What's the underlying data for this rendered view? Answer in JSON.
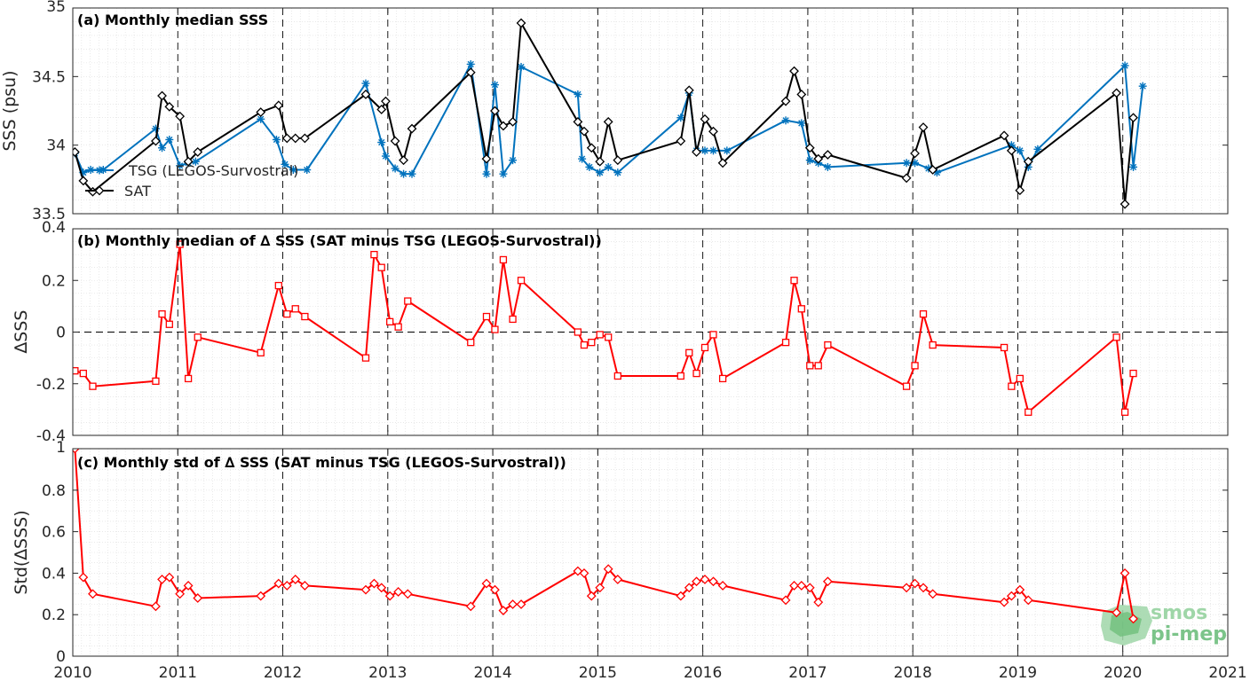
{
  "chart_data": [
    {
      "type": "line",
      "title": "(a) Monthly median SSS",
      "ylabel": "SSS (psu)",
      "ylim": [
        33.5,
        35
      ],
      "xlim": [
        2010,
        2021
      ],
      "yticks": [
        "33.5",
        "34",
        "34.5",
        "35"
      ],
      "legend_position": "left, near bottom",
      "series": [
        {
          "name": "TSG (LEGOS-Survostral)",
          "color": "#0072BD",
          "marker": "star",
          "points": [
            [
              2010.02,
              33.94
            ],
            [
              2010.1,
              33.8
            ],
            [
              2010.17,
              33.82
            ],
            [
              2010.29,
              33.82
            ],
            [
              2010.79,
              34.12
            ],
            [
              2010.85,
              33.98
            ],
            [
              2010.92,
              34.04
            ],
            [
              2011.02,
              33.85
            ],
            [
              2011.1,
              33.87
            ],
            [
              2011.17,
              33.88
            ],
            [
              2011.79,
              34.19
            ],
            [
              2011.94,
              34.04
            ],
            [
              2012.02,
              33.86
            ],
            [
              2012.1,
              33.82
            ],
            [
              2012.23,
              33.82
            ],
            [
              2012.79,
              34.45
            ],
            [
              2012.94,
              34.02
            ],
            [
              2012.98,
              33.92
            ],
            [
              2013.07,
              33.83
            ],
            [
              2013.15,
              33.79
            ],
            [
              2013.23,
              33.79
            ],
            [
              2013.79,
              34.59
            ],
            [
              2013.94,
              33.79
            ],
            [
              2014.02,
              34.44
            ],
            [
              2014.1,
              33.79
            ],
            [
              2014.19,
              33.89
            ],
            [
              2014.27,
              34.57
            ],
            [
              2014.81,
              34.37
            ],
            [
              2014.85,
              33.9
            ],
            [
              2014.92,
              33.84
            ],
            [
              2015.02,
              33.8
            ],
            [
              2015.1,
              33.84
            ],
            [
              2015.19,
              33.8
            ],
            [
              2015.79,
              34.2
            ],
            [
              2015.87,
              34.38
            ],
            [
              2015.94,
              33.96
            ],
            [
              2016.02,
              33.96
            ],
            [
              2016.1,
              33.96
            ],
            [
              2016.23,
              33.96
            ],
            [
              2016.79,
              34.18
            ],
            [
              2016.94,
              34.16
            ],
            [
              2017.02,
              33.89
            ],
            [
              2017.1,
              33.87
            ],
            [
              2017.19,
              33.84
            ],
            [
              2017.94,
              33.87
            ],
            [
              2018.02,
              33.87
            ],
            [
              2018.15,
              33.83
            ],
            [
              2018.23,
              33.8
            ],
            [
              2018.94,
              34.0
            ],
            [
              2019.02,
              33.96
            ],
            [
              2019.1,
              33.84
            ],
            [
              2019.19,
              33.97
            ],
            [
              2020.02,
              34.58
            ],
            [
              2020.1,
              33.84
            ],
            [
              2020.19,
              34.43
            ]
          ]
        },
        {
          "name": "SAT",
          "color": "#000000",
          "marker": "diamond",
          "points": [
            [
              2010.02,
              33.95
            ],
            [
              2010.1,
              33.74
            ],
            [
              2010.19,
              33.66
            ],
            [
              2010.79,
              34.03
            ],
            [
              2010.85,
              34.36
            ],
            [
              2010.92,
              34.28
            ],
            [
              2011.02,
              34.21
            ],
            [
              2011.1,
              33.88
            ],
            [
              2011.19,
              33.95
            ],
            [
              2011.79,
              34.24
            ],
            [
              2011.96,
              34.29
            ],
            [
              2012.04,
              34.05
            ],
            [
              2012.12,
              34.05
            ],
            [
              2012.21,
              34.05
            ],
            [
              2012.79,
              34.37
            ],
            [
              2012.94,
              34.26
            ],
            [
              2012.98,
              34.32
            ],
            [
              2013.07,
              34.03
            ],
            [
              2013.15,
              33.89
            ],
            [
              2013.23,
              34.12
            ],
            [
              2013.79,
              34.53
            ],
            [
              2013.94,
              33.9
            ],
            [
              2014.02,
              34.25
            ],
            [
              2014.1,
              34.14
            ],
            [
              2014.19,
              34.17
            ],
            [
              2014.27,
              34.89
            ],
            [
              2014.81,
              34.17
            ],
            [
              2014.87,
              34.1
            ],
            [
              2014.94,
              33.98
            ],
            [
              2015.02,
              33.88
            ],
            [
              2015.1,
              34.17
            ],
            [
              2015.19,
              33.89
            ],
            [
              2015.79,
              34.03
            ],
            [
              2015.87,
              34.4
            ],
            [
              2015.94,
              33.95
            ],
            [
              2016.02,
              34.19
            ],
            [
              2016.1,
              34.1
            ],
            [
              2016.19,
              33.87
            ],
            [
              2016.79,
              34.32
            ],
            [
              2016.87,
              34.54
            ],
            [
              2016.94,
              34.37
            ],
            [
              2017.02,
              33.98
            ],
            [
              2017.1,
              33.9
            ],
            [
              2017.19,
              33.93
            ],
            [
              2017.94,
              33.76
            ],
            [
              2018.02,
              33.94
            ],
            [
              2018.1,
              34.13
            ],
            [
              2018.19,
              33.82
            ],
            [
              2018.87,
              34.07
            ],
            [
              2018.94,
              33.96
            ],
            [
              2019.02,
              33.67
            ],
            [
              2019.1,
              33.88
            ],
            [
              2019.94,
              34.38
            ],
            [
              2020.02,
              33.57
            ],
            [
              2020.1,
              34.2
            ]
          ]
        }
      ]
    },
    {
      "type": "line",
      "title": "(b) Monthly median of ∆ SSS (SAT minus TSG (LEGOS-Survostral))",
      "ylabel": "∆SSS",
      "ylim": [
        -0.4,
        0.4
      ],
      "xlim": [
        2010,
        2021
      ],
      "yticks": [
        "-0.4",
        "-0.2",
        "0",
        "0.2",
        "0.4"
      ],
      "series": [
        {
          "name": "",
          "color": "#FF0000",
          "marker": "square",
          "points": [
            [
              2010.02,
              -0.15
            ],
            [
              2010.1,
              -0.16
            ],
            [
              2010.19,
              -0.21
            ],
            [
              2010.79,
              -0.19
            ],
            [
              2010.85,
              0.07
            ],
            [
              2010.92,
              0.03
            ],
            [
              2011.02,
              0.34
            ],
            [
              2011.1,
              -0.18
            ],
            [
              2011.19,
              -0.02
            ],
            [
              2011.79,
              -0.08
            ],
            [
              2011.96,
              0.18
            ],
            [
              2012.04,
              0.07
            ],
            [
              2012.12,
              0.09
            ],
            [
              2012.21,
              0.06
            ],
            [
              2012.79,
              -0.1
            ],
            [
              2012.87,
              0.3
            ],
            [
              2012.94,
              0.25
            ],
            [
              2013.02,
              0.04
            ],
            [
              2013.1,
              0.02
            ],
            [
              2013.19,
              0.12
            ],
            [
              2013.79,
              -0.04
            ],
            [
              2013.94,
              0.06
            ],
            [
              2014.02,
              0.01
            ],
            [
              2014.1,
              0.28
            ],
            [
              2014.19,
              0.05
            ],
            [
              2014.27,
              0.2
            ],
            [
              2014.81,
              0.0
            ],
            [
              2014.87,
              -0.05
            ],
            [
              2014.94,
              -0.04
            ],
            [
              2015.02,
              -0.01
            ],
            [
              2015.1,
              -0.02
            ],
            [
              2015.19,
              -0.17
            ],
            [
              2015.79,
              -0.17
            ],
            [
              2015.87,
              -0.08
            ],
            [
              2015.94,
              -0.16
            ],
            [
              2016.02,
              -0.06
            ],
            [
              2016.1,
              -0.01
            ],
            [
              2016.19,
              -0.18
            ],
            [
              2016.79,
              -0.04
            ],
            [
              2016.87,
              0.2
            ],
            [
              2016.94,
              0.09
            ],
            [
              2017.02,
              -0.13
            ],
            [
              2017.1,
              -0.13
            ],
            [
              2017.19,
              -0.05
            ],
            [
              2017.94,
              -0.21
            ],
            [
              2018.02,
              -0.13
            ],
            [
              2018.1,
              0.07
            ],
            [
              2018.19,
              -0.05
            ],
            [
              2018.87,
              -0.06
            ],
            [
              2018.94,
              -0.21
            ],
            [
              2019.02,
              -0.18
            ],
            [
              2019.1,
              -0.31
            ],
            [
              2019.94,
              -0.02
            ],
            [
              2020.02,
              -0.31
            ],
            [
              2020.1,
              -0.16
            ]
          ]
        }
      ]
    },
    {
      "type": "line",
      "title": "(c) Monthly std of ∆ SSS (SAT minus TSG (LEGOS-Survostral))",
      "ylabel": "Std(∆SSS)",
      "ylim": [
        0,
        1
      ],
      "xlim": [
        2010,
        2021
      ],
      "yticks": [
        "0",
        "0.2",
        "0.4",
        "0.6",
        "0.8",
        "1"
      ],
      "xticks": [
        "2010",
        "2011",
        "2012",
        "2013",
        "2014",
        "2015",
        "2016",
        "2017",
        "2018",
        "2019",
        "2020",
        "2021"
      ],
      "series": [
        {
          "name": "",
          "color": "#FF0000",
          "marker": "diamond",
          "points": [
            [
              2010.02,
              1.0
            ],
            [
              2010.1,
              0.38
            ],
            [
              2010.19,
              0.3
            ],
            [
              2010.79,
              0.24
            ],
            [
              2010.85,
              0.37
            ],
            [
              2010.92,
              0.38
            ],
            [
              2011.02,
              0.3
            ],
            [
              2011.1,
              0.34
            ],
            [
              2011.19,
              0.28
            ],
            [
              2011.79,
              0.29
            ],
            [
              2011.96,
              0.35
            ],
            [
              2012.04,
              0.34
            ],
            [
              2012.12,
              0.37
            ],
            [
              2012.21,
              0.34
            ],
            [
              2012.79,
              0.32
            ],
            [
              2012.87,
              0.35
            ],
            [
              2012.94,
              0.33
            ],
            [
              2013.02,
              0.29
            ],
            [
              2013.1,
              0.31
            ],
            [
              2013.19,
              0.3
            ],
            [
              2013.79,
              0.24
            ],
            [
              2013.94,
              0.35
            ],
            [
              2014.02,
              0.32
            ],
            [
              2014.1,
              0.22
            ],
            [
              2014.19,
              0.25
            ],
            [
              2014.27,
              0.25
            ],
            [
              2014.81,
              0.41
            ],
            [
              2014.87,
              0.4
            ],
            [
              2014.94,
              0.29
            ],
            [
              2015.02,
              0.33
            ],
            [
              2015.1,
              0.42
            ],
            [
              2015.19,
              0.37
            ],
            [
              2015.79,
              0.29
            ],
            [
              2015.87,
              0.33
            ],
            [
              2015.94,
              0.36
            ],
            [
              2016.02,
              0.37
            ],
            [
              2016.1,
              0.36
            ],
            [
              2016.19,
              0.34
            ],
            [
              2016.79,
              0.27
            ],
            [
              2016.87,
              0.34
            ],
            [
              2016.94,
              0.34
            ],
            [
              2017.02,
              0.33
            ],
            [
              2017.1,
              0.26
            ],
            [
              2017.19,
              0.36
            ],
            [
              2017.94,
              0.33
            ],
            [
              2018.02,
              0.35
            ],
            [
              2018.1,
              0.33
            ],
            [
              2018.19,
              0.3
            ],
            [
              2018.87,
              0.26
            ],
            [
              2018.94,
              0.29
            ],
            [
              2019.02,
              0.32
            ],
            [
              2019.1,
              0.27
            ],
            [
              2019.94,
              0.21
            ],
            [
              2020.02,
              0.4
            ],
            [
              2020.1,
              0.18
            ]
          ]
        }
      ]
    }
  ],
  "logo": {
    "line1": "smos",
    "line2": "pi-mep"
  },
  "colors": {
    "tsg": "#0072BD",
    "sat": "#000000",
    "delta": "#FF0000",
    "grid": "#d9d9d9",
    "logo": "#7cc48a"
  }
}
